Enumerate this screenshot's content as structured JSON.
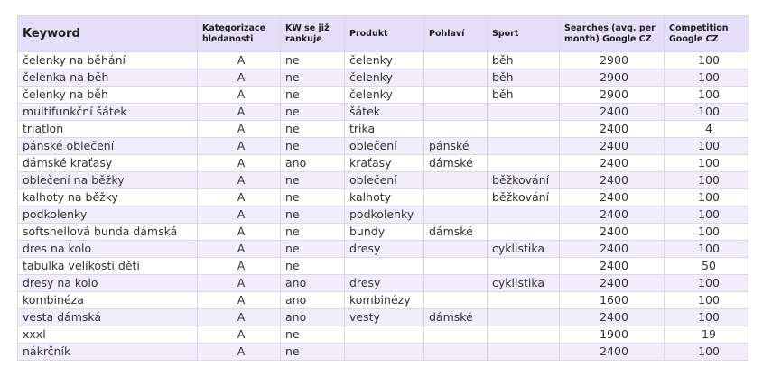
{
  "headers": {
    "keyword": "Keyword",
    "kategorizace": "Kategorizace hledanosti",
    "ranking": "KW se již rankuje",
    "produkt": "Produkt",
    "pohlavi": "Pohlaví",
    "sport": "Sport",
    "searches": "Searches (avg. per month) Google CZ",
    "competition": "Competition Google CZ"
  },
  "rows": [
    {
      "keyword": "čelenky na běhání",
      "kategorizace": "A",
      "ranking": "ne",
      "produkt": "čelenky",
      "pohlavi": "",
      "sport": "běh",
      "searches": "2900",
      "competition": "100"
    },
    {
      "keyword": "čelenka na běh",
      "kategorizace": "A",
      "ranking": "ne",
      "produkt": "čelenky",
      "pohlavi": "",
      "sport": "běh",
      "searches": "2900",
      "competition": "100"
    },
    {
      "keyword": "čelenky na běh",
      "kategorizace": "A",
      "ranking": "ne",
      "produkt": "čelenky",
      "pohlavi": "",
      "sport": "běh",
      "searches": "2900",
      "competition": "100"
    },
    {
      "keyword": "multifunkční šátek",
      "kategorizace": "A",
      "ranking": "ne",
      "produkt": "šátek",
      "pohlavi": "",
      "sport": "",
      "searches": "2400",
      "competition": "100"
    },
    {
      "keyword": "triatlon",
      "kategorizace": "A",
      "ranking": "ne",
      "produkt": "trika",
      "pohlavi": "",
      "sport": "",
      "searches": "2400",
      "competition": "4"
    },
    {
      "keyword": "pánské oblečení",
      "kategorizace": "A",
      "ranking": "ne",
      "produkt": "oblečení",
      "pohlavi": "pánské",
      "sport": "",
      "searches": "2400",
      "competition": "100"
    },
    {
      "keyword": "dámské kraťasy",
      "kategorizace": "A",
      "ranking": "ano",
      "produkt": "kraťasy",
      "pohlavi": "dámské",
      "sport": "",
      "searches": "2400",
      "competition": "100"
    },
    {
      "keyword": "oblečení na běžky",
      "kategorizace": "A",
      "ranking": "ne",
      "produkt": "oblečení",
      "pohlavi": "",
      "sport": "běžkování",
      "searches": "2400",
      "competition": "100"
    },
    {
      "keyword": "kalhoty na běžky",
      "kategorizace": "A",
      "ranking": "ne",
      "produkt": "kalhoty",
      "pohlavi": "",
      "sport": "běžkování",
      "searches": "2400",
      "competition": "100"
    },
    {
      "keyword": "podkolenky",
      "kategorizace": "A",
      "ranking": "ne",
      "produkt": "podkolenky",
      "pohlavi": "",
      "sport": "",
      "searches": "2400",
      "competition": "100"
    },
    {
      "keyword": "softshellová bunda dámská",
      "kategorizace": "A",
      "ranking": "ne",
      "produkt": "bundy",
      "pohlavi": "dámské",
      "sport": "",
      "searches": "2400",
      "competition": "100"
    },
    {
      "keyword": "dres na kolo",
      "kategorizace": "A",
      "ranking": "ne",
      "produkt": "dresy",
      "pohlavi": "",
      "sport": "cyklistika",
      "searches": "2400",
      "competition": "100"
    },
    {
      "keyword": "tabulka velikostí děti",
      "kategorizace": "A",
      "ranking": "ne",
      "produkt": "",
      "pohlavi": "",
      "sport": "",
      "searches": "2400",
      "competition": "50"
    },
    {
      "keyword": "dresy na kolo",
      "kategorizace": "A",
      "ranking": "ano",
      "produkt": "dresy",
      "pohlavi": "",
      "sport": "cyklistika",
      "searches": "2400",
      "competition": "100"
    },
    {
      "keyword": "kombinéza",
      "kategorizace": "A",
      "ranking": "ano",
      "produkt": "kombinézy",
      "pohlavi": "",
      "sport": "",
      "searches": "1600",
      "competition": "100"
    },
    {
      "keyword": "vesta dámská",
      "kategorizace": "A",
      "ranking": "ano",
      "produkt": "vesty",
      "pohlavi": "dámské",
      "sport": "",
      "searches": "2400",
      "competition": "100"
    },
    {
      "keyword": "xxxl",
      "kategorizace": "A",
      "ranking": "ne",
      "produkt": "",
      "pohlavi": "",
      "sport": "",
      "searches": "1900",
      "competition": "19"
    },
    {
      "keyword": "nákrčník",
      "kategorizace": "A",
      "ranking": "ne",
      "produkt": "",
      "pohlavi": "",
      "sport": "",
      "searches": "2400",
      "competition": "100"
    }
  ]
}
